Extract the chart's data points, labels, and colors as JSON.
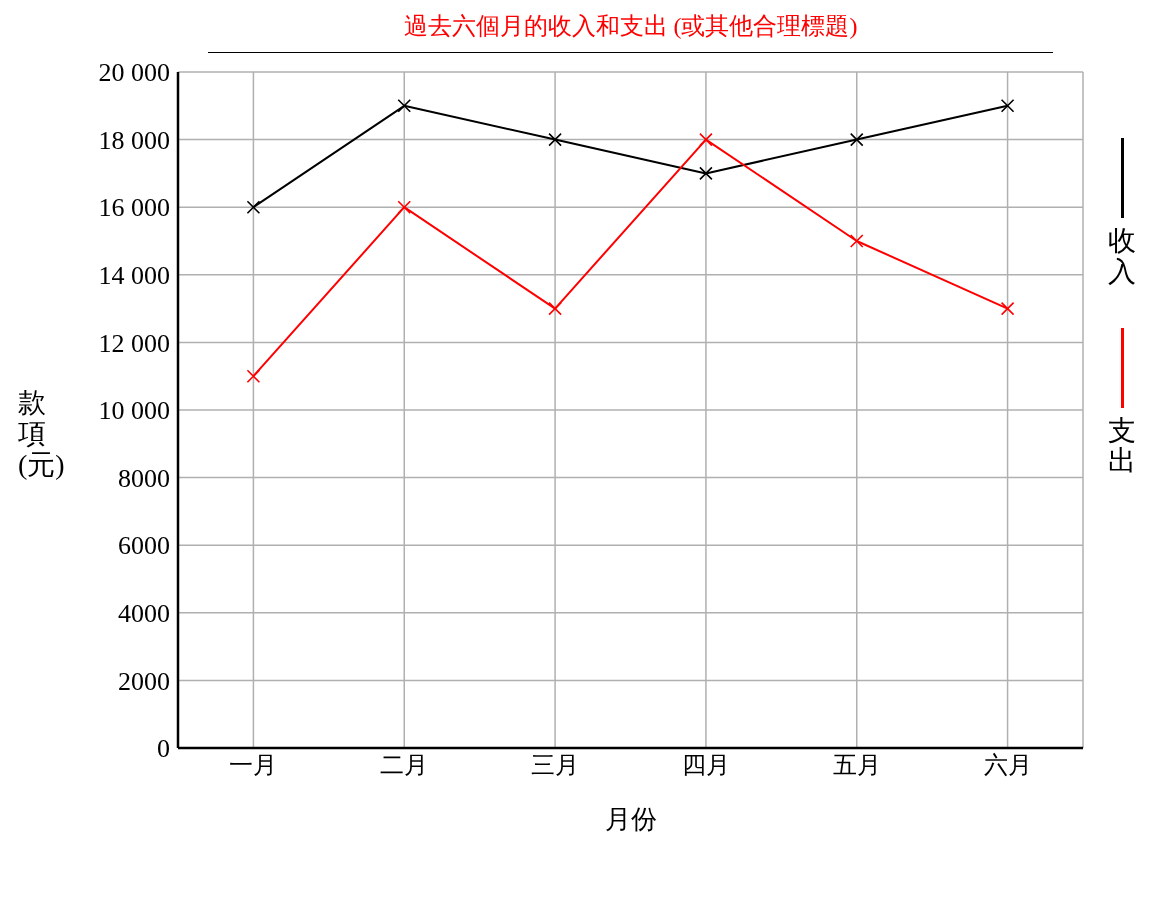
{
  "chart_data": {
    "type": "line",
    "title": "過去六個月的收入和支出 (或其他合理標題)",
    "xlabel": "月份",
    "ylabel": "款項 (元)",
    "categories": [
      "一月",
      "二月",
      "三月",
      "四月",
      "五月",
      "六月"
    ],
    "series": [
      {
        "name": "收入",
        "color": "#000000",
        "values": [
          16000,
          19000,
          18000,
          17000,
          18000,
          19000
        ]
      },
      {
        "name": "支出",
        "color": "#ff0000",
        "values": [
          11000,
          16000,
          13000,
          18000,
          15000,
          13000
        ]
      }
    ],
    "ylim": [
      0,
      20000
    ],
    "yticks": [
      0,
      2000,
      4000,
      6000,
      8000,
      {
        "value": 10000,
        "label": "10 000"
      },
      {
        "value": 12000,
        "label": "12 000"
      },
      {
        "value": 14000,
        "label": "14 000"
      },
      {
        "value": 16000,
        "label": "16 000"
      },
      {
        "value": 18000,
        "label": "18 000"
      },
      {
        "value": 20000,
        "label": "20 000"
      }
    ],
    "grid": true,
    "legend": "right",
    "marker": "cross",
    "line_style": "solid"
  }
}
